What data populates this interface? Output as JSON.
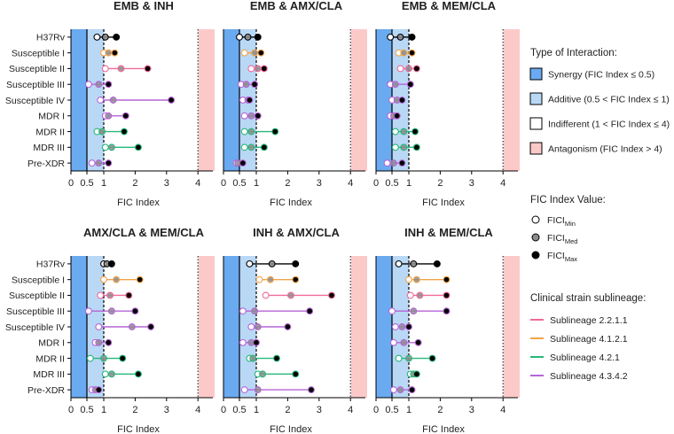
{
  "colors": {
    "synergy": "#6aaaf0",
    "additive": "#b9d8f6",
    "antagonism": "#fcc9c9",
    "min_marker": "#ffffff",
    "med_marker": "#8c8c8c",
    "max_marker": "#000000",
    "sub_2211": "#f06a9b",
    "sub_4121": "#f2a44a",
    "sub_421": "#28b77a",
    "sub_4342": "#b565d6",
    "ref": "#000000"
  },
  "strains": [
    "H37Rv",
    "Susceptible I",
    "Susceptible II",
    "Susceptible III",
    "Susceptible IV",
    "MDR I",
    "MDR II",
    "MDR III",
    "Pre-XDR"
  ],
  "strain_sublineage": [
    "ref",
    "sub_4121",
    "sub_2211",
    "sub_4342",
    "sub_4342",
    "sub_4342",
    "sub_421",
    "sub_421",
    "sub_4342"
  ],
  "chart_data": [
    {
      "type": "dot-range",
      "title": "EMB & INH",
      "xlabel": "FIC Index",
      "xlim": [
        0,
        4.5
      ],
      "xticks": [
        "0",
        "0.5",
        "1",
        "2",
        "3",
        "4"
      ],
      "min": [
        0.8,
        1.0,
        1.05,
        0.55,
        0.9,
        1.05,
        0.8,
        1.05,
        0.65
      ],
      "med": [
        1.05,
        1.15,
        1.55,
        0.85,
        1.3,
        1.15,
        0.95,
        1.25,
        0.85
      ],
      "max": [
        1.4,
        1.35,
        2.4,
        1.15,
        3.15,
        1.7,
        1.65,
        2.1,
        1.15
      ]
    },
    {
      "type": "dot-range",
      "title": "EMB & AMX/CLA",
      "xlabel": "FIC Index",
      "xlim": [
        0,
        4.5
      ],
      "xticks": [
        "0",
        "0.5",
        "1",
        "2",
        "3",
        "4"
      ],
      "min": [
        0.5,
        0.65,
        0.85,
        0.55,
        0.6,
        0.65,
        0.65,
        0.65,
        0.4
      ],
      "med": [
        0.75,
        0.95,
        1.05,
        0.7,
        0.75,
        0.85,
        0.85,
        0.85,
        0.45
      ],
      "max": [
        1.05,
        1.15,
        1.25,
        0.95,
        0.8,
        1.05,
        1.6,
        1.25,
        0.6
      ]
    },
    {
      "type": "dot-range",
      "title": "EMB & MEM/CLA",
      "xlabel": "FIC Index",
      "xlim": [
        0,
        4.5
      ],
      "xticks": [
        "0",
        "0.5",
        "1",
        "2",
        "3",
        "4"
      ],
      "min": [
        0.45,
        0.7,
        0.75,
        0.45,
        0.5,
        0.45,
        0.6,
        0.6,
        0.35
      ],
      "med": [
        0.75,
        0.85,
        1.0,
        0.6,
        0.65,
        0.55,
        0.85,
        0.85,
        0.55
      ],
      "max": [
        1.1,
        1.1,
        1.25,
        1.05,
        0.8,
        0.65,
        1.2,
        1.25,
        0.8
      ]
    },
    {
      "type": "dot-range",
      "title": "AMX/CLA & MEM/CLA",
      "xlabel": "FIC Index",
      "xlim": [
        0,
        4.5
      ],
      "xticks": [
        "0",
        "0.5",
        "1",
        "2",
        "3",
        "4"
      ],
      "min": [
        1.0,
        1.0,
        0.9,
        0.55,
        0.85,
        0.75,
        0.6,
        1.05,
        0.65
      ],
      "med": [
        1.1,
        1.4,
        1.2,
        1.25,
        1.9,
        0.85,
        1.0,
        1.25,
        0.75
      ],
      "max": [
        1.25,
        2.15,
        1.8,
        2.0,
        2.5,
        1.15,
        1.6,
        2.1,
        0.85
      ]
    },
    {
      "type": "dot-range",
      "title": "INH & AMX/CLA",
      "xlabel": "FIC Index",
      "xlim": [
        0,
        4.5
      ],
      "xticks": [
        "0",
        "0.5",
        "1",
        "2",
        "3",
        "4"
      ],
      "min": [
        0.8,
        1.1,
        1.3,
        0.6,
        0.85,
        0.6,
        0.8,
        1.05,
        0.65
      ],
      "med": [
        1.5,
        1.45,
        2.1,
        0.95,
        1.05,
        0.85,
        0.9,
        1.2,
        1.05
      ],
      "max": [
        2.25,
        2.25,
        3.4,
        2.7,
        2.0,
        1.0,
        1.65,
        2.25,
        2.75
      ]
    },
    {
      "type": "dot-range",
      "title": "INH & MEM/CLA",
      "xlabel": "FIC Index",
      "xlim": [
        0,
        4.5
      ],
      "xticks": [
        "0",
        "0.5",
        "1",
        "2",
        "3",
        "4"
      ],
      "min": [
        0.7,
        1.0,
        1.05,
        0.5,
        0.6,
        0.55,
        0.7,
        1.05,
        0.55
      ],
      "med": [
        1.15,
        1.25,
        1.35,
        1.15,
        0.8,
        0.85,
        1.0,
        1.15,
        0.75
      ],
      "max": [
        1.9,
        2.2,
        2.2,
        2.2,
        1.0,
        1.3,
        1.75,
        1.25,
        1.1
      ]
    }
  ],
  "legend": {
    "interaction_title": "Type of  Interaction:",
    "interaction_items": [
      {
        "label": "Synergy (FIC Index ≤ 0.5)",
        "color": "synergy"
      },
      {
        "label": "Additive (0.5 < FIC Index ≤ 1)",
        "color": "additive"
      },
      {
        "label": "Indifferent (1 < FIC Index ≤ 4)",
        "color": "indifferent"
      },
      {
        "label": "Antagonism (FIC Index > 4)",
        "color": "antagonism"
      }
    ],
    "fic_title": "FIC Index Value:",
    "fic_items": [
      {
        "base": "FICI",
        "sub": "Min",
        "marker": "min_marker"
      },
      {
        "base": "FICI",
        "sub": "Med",
        "marker": "med_marker"
      },
      {
        "base": "FICI",
        "sub": "Max",
        "marker": "max_marker"
      }
    ],
    "sublineage_title": "Clinical strain sublineage:",
    "sublineage_items": [
      {
        "label": "Sublineage 2.2.1.1",
        "color": "sub_2211"
      },
      {
        "label": "Sublineage 4.1.2.1",
        "color": "sub_4121"
      },
      {
        "label": "Sublineage 4.2.1",
        "color": "sub_421"
      },
      {
        "label": "Sublineage 4.3.4.2",
        "color": "sub_4342"
      }
    ]
  }
}
